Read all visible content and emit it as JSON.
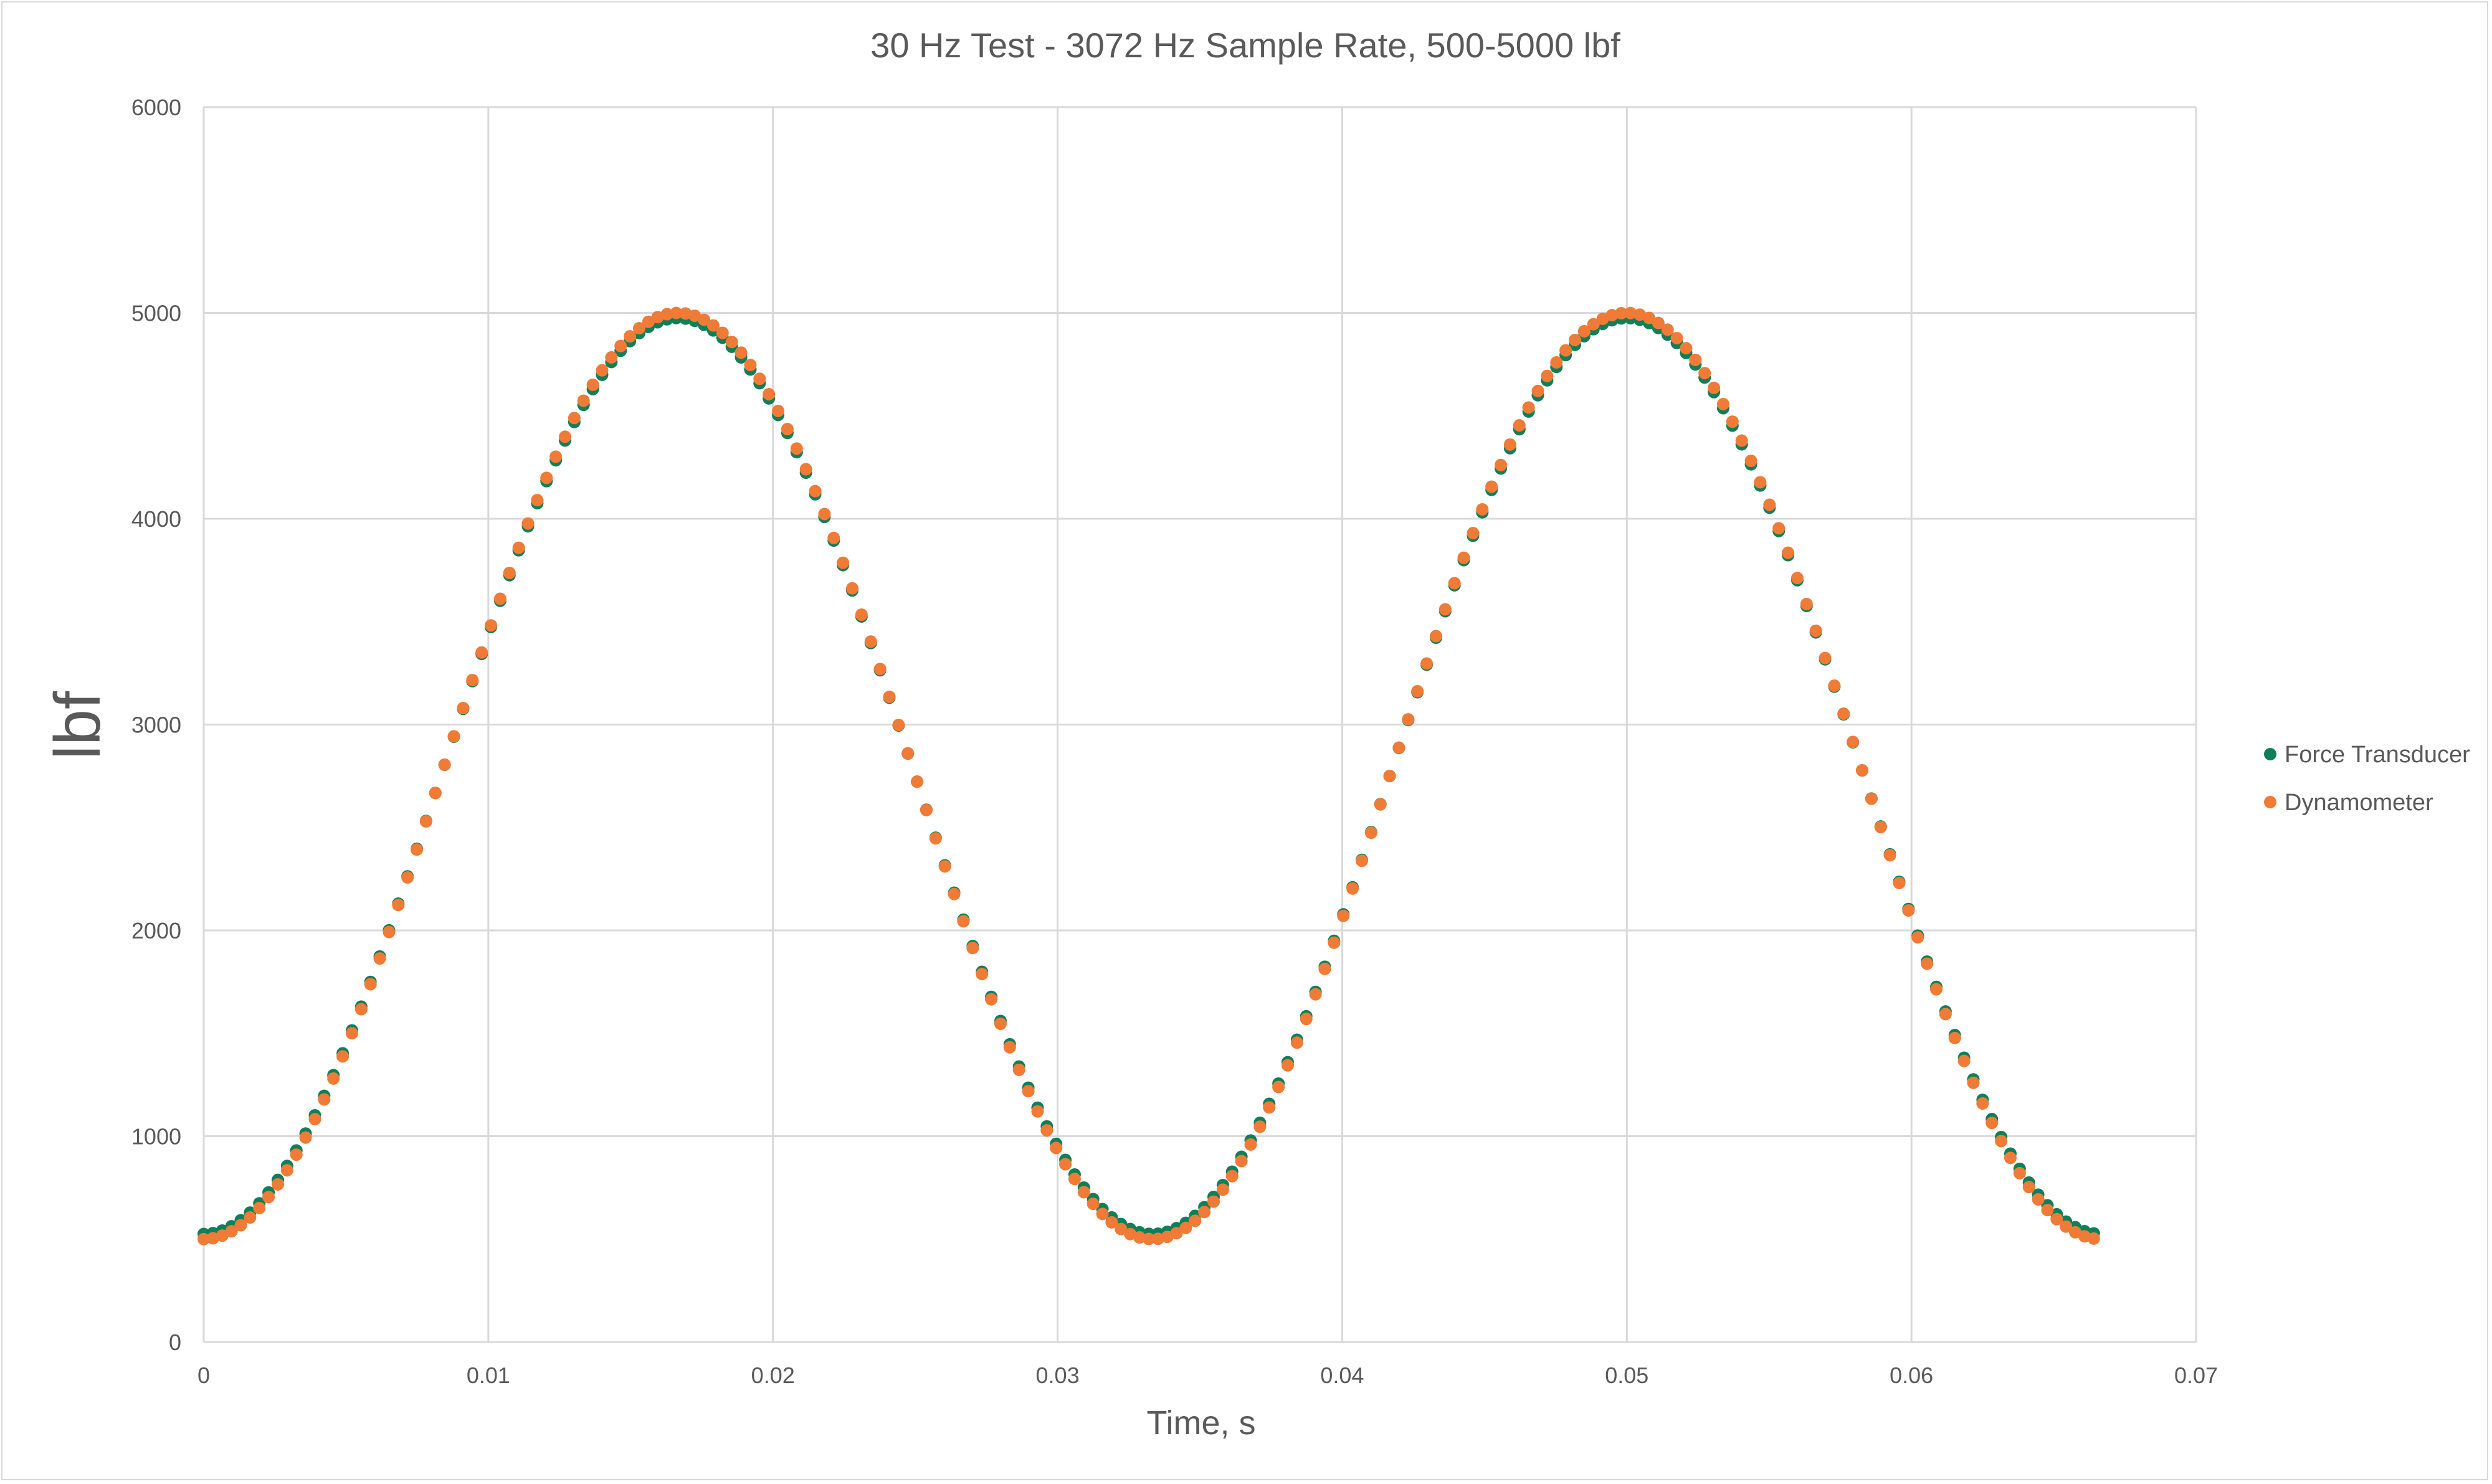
{
  "chart_data": {
    "type": "scatter",
    "title": "30 Hz Test - 3072 Hz Sample Rate, 500-5000 lbf",
    "xlabel": "Time, s",
    "ylabel": "lbf",
    "xlim": [
      0,
      0.07
    ],
    "ylim": [
      0,
      6000
    ],
    "x_ticks": [
      "0",
      "0.01",
      "0.02",
      "0.03",
      "0.04",
      "0.05",
      "0.06",
      "0.07"
    ],
    "y_ticks": [
      "0",
      "1000",
      "2000",
      "3000",
      "4000",
      "5000",
      "6000"
    ],
    "grid": true,
    "legend_position": "right",
    "sample_rate_hz": 3072,
    "signal_frequency_hz": 30,
    "x_range": [
      0,
      0.0667
    ],
    "series": [
      {
        "name": "Force Transducer",
        "color": "#0f7f5a",
        "waveform": "sinusoid",
        "min": 525,
        "max": 4975,
        "note_points": "one point every 1/3072 s from 0 to 0.0667 s; value = (max+min)/2 - (max-min)/2 * cos(2*pi*30*t)"
      },
      {
        "name": "Dynamometer",
        "color": "#ef7b36",
        "waveform": "sinusoid",
        "min": 500,
        "max": 5000,
        "note_points": "one point every 1/3072 s from 0 to 0.0667 s; value = (max+min)/2 - (max-min)/2 * cos(2*pi*30*t)"
      }
    ]
  }
}
